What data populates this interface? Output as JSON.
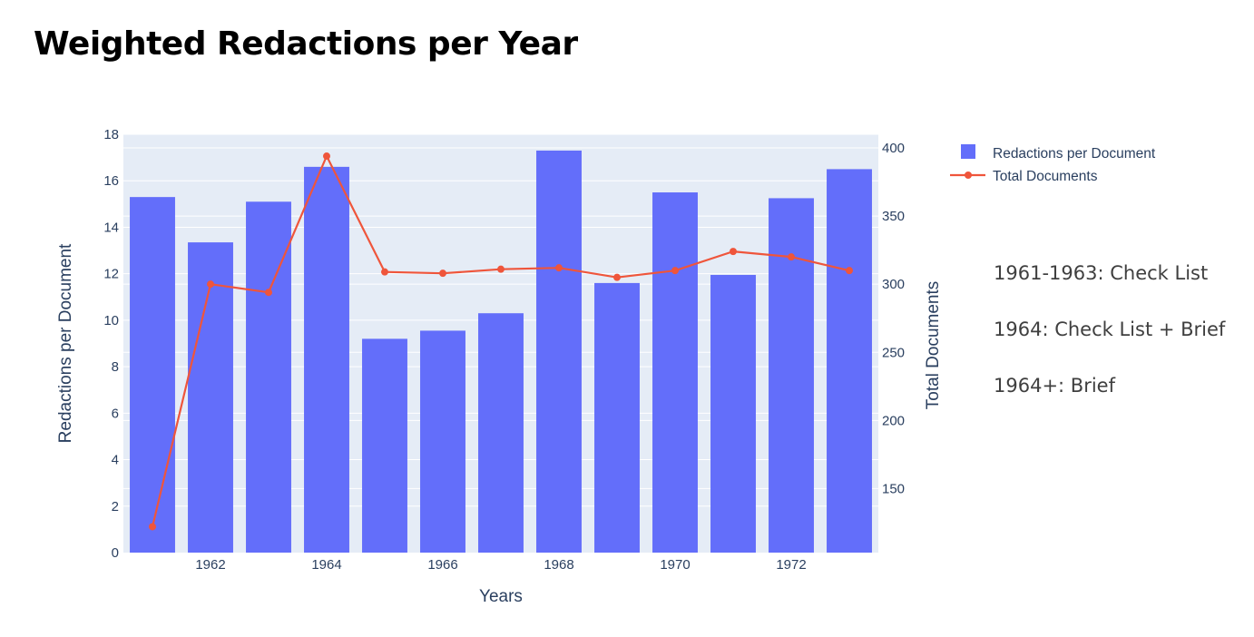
{
  "page": {
    "title": "Weighted Redactions per Year"
  },
  "notes": [
    "1961-1963: Check List",
    "1964: Check List + Brief",
    "1964+: Brief"
  ],
  "chart_data": {
    "type": "bar",
    "title": "",
    "xlabel": "Years",
    "ylabel": "Redactions per Document",
    "y2label": "Total Documents",
    "x": [
      1961,
      1962,
      1963,
      1964,
      1965,
      1966,
      1967,
      1968,
      1969,
      1970,
      1971,
      1972,
      1973
    ],
    "x_ticks": [
      1962,
      1964,
      1966,
      1968,
      1970,
      1972
    ],
    "ylim": [
      0,
      18
    ],
    "y_ticks": [
      0,
      2,
      4,
      6,
      8,
      10,
      12,
      14,
      16,
      18
    ],
    "y2lim": [
      103,
      410
    ],
    "y2_ticks": [
      150,
      200,
      250,
      300,
      350,
      400
    ],
    "legend_position": "top-right",
    "grid": true,
    "colors": {
      "bar": "#636efa",
      "line": "#ef553b",
      "plot_bg": "#e5ecf6",
      "text": "#2a3f5f"
    },
    "series": [
      {
        "name": "Redactions per Document",
        "type": "bar",
        "axis": "y",
        "values": [
          15.3,
          13.35,
          15.1,
          16.6,
          9.2,
          9.55,
          10.3,
          17.3,
          11.6,
          15.5,
          11.95,
          15.25,
          16.5
        ]
      },
      {
        "name": "Total Documents",
        "type": "line",
        "axis": "y2",
        "values": [
          122,
          300,
          294,
          394,
          309,
          308,
          311,
          312,
          305,
          310,
          324,
          320,
          310
        ]
      }
    ]
  }
}
